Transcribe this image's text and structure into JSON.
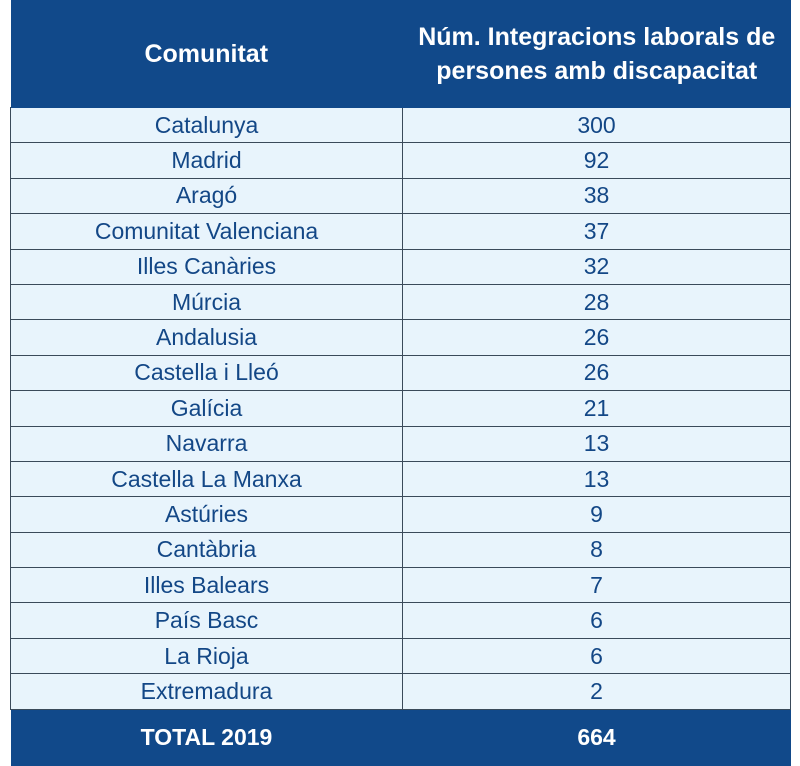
{
  "header": {
    "col1": "Comunitat",
    "col2": "Núm. Integracions laborals de persones amb discapacitat"
  },
  "rows": [
    {
      "region": "Catalunya",
      "count": "300"
    },
    {
      "region": "Madrid",
      "count": "92"
    },
    {
      "region": "Aragó",
      "count": "38"
    },
    {
      "region": "Comunitat Valenciana",
      "count": "37"
    },
    {
      "region": "Illes Canàries",
      "count": "32"
    },
    {
      "region": "Múrcia",
      "count": "28"
    },
    {
      "region": "Andalusia",
      "count": "26"
    },
    {
      "region": "Castella i Lleó",
      "count": "26"
    },
    {
      "region": "Galícia",
      "count": "21"
    },
    {
      "region": "Navarra",
      "count": "13"
    },
    {
      "region": "Castella La Manxa",
      "count": "13"
    },
    {
      "region": "Astúries",
      "count": "9"
    },
    {
      "region": "Cantàbria",
      "count": "8"
    },
    {
      "region": "Illes Balears",
      "count": "7"
    },
    {
      "region": "País Basc",
      "count": "6"
    },
    {
      "region": "La Rioja",
      "count": "6"
    },
    {
      "region": "Extremadura",
      "count": "2"
    }
  ],
  "total": {
    "label": "TOTAL 2019",
    "value": "664"
  },
  "colors": {
    "header_bg": "#11498a",
    "row_bg": "#e8f4fc",
    "row_text": "#134786"
  }
}
